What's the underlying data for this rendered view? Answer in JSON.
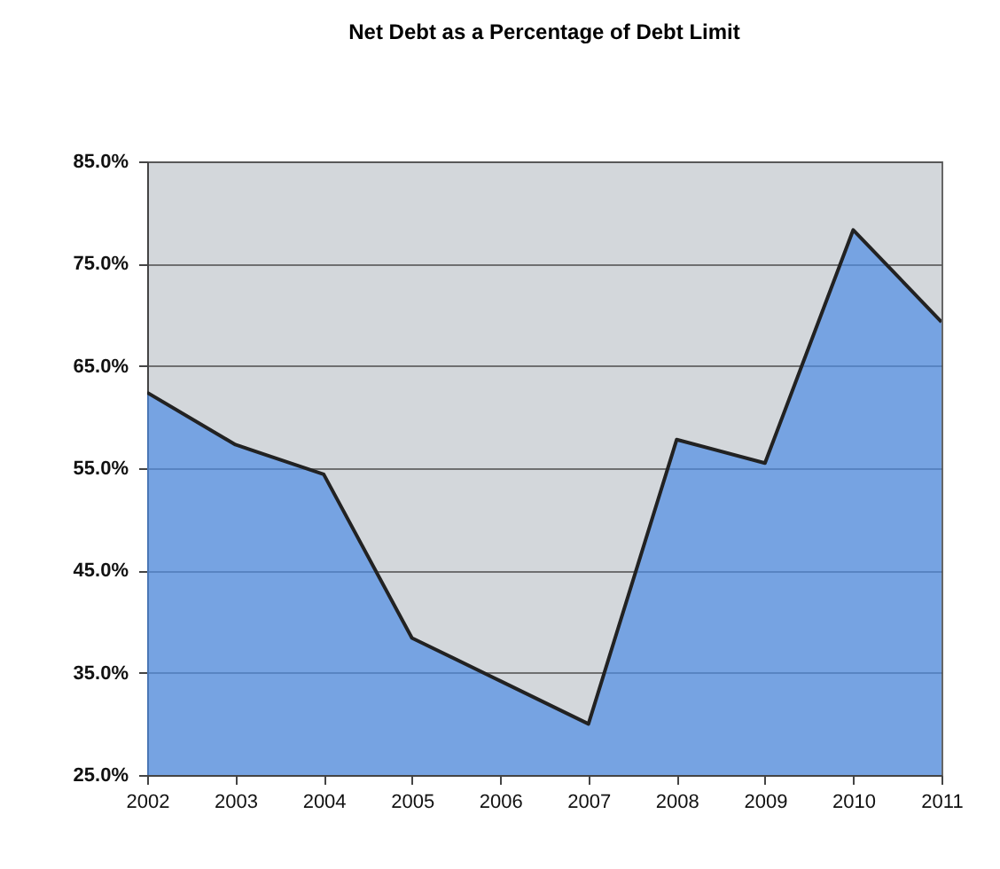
{
  "chart_data": {
    "type": "area",
    "title": "Net Debt as a Percentage of Debt Limit",
    "categories": [
      "2002",
      "2003",
      "2004",
      "2005",
      "2006",
      "2007",
      "2008",
      "2009",
      "2010",
      "2011"
    ],
    "values": [
      62.4,
      57.3,
      54.4,
      38.4,
      34.2,
      30.0,
      57.8,
      55.5,
      78.3,
      69.3
    ],
    "color": "#4f8de6",
    "ylim": [
      25,
      85
    ],
    "yticks": [
      {
        "value": 25,
        "label": "25.0%"
      },
      {
        "value": 35,
        "label": "35.0%"
      },
      {
        "value": 45,
        "label": "45.0%"
      },
      {
        "value": 55,
        "label": "55.0%"
      },
      {
        "value": 65,
        "label": "65.0%"
      },
      {
        "value": 75,
        "label": "75.0%"
      },
      {
        "value": 85,
        "label": "85.0%"
      }
    ],
    "grid": "y"
  }
}
